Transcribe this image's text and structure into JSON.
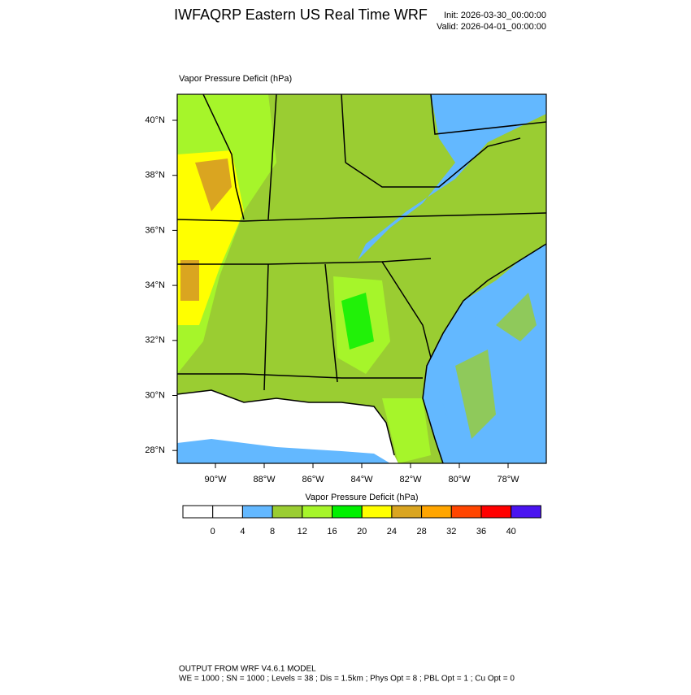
{
  "header": {
    "title": "IWFAQRP Eastern US Real Time WRF",
    "init": "Init: 2026-03-30_00:00:00",
    "valid": "Valid: 2026-04-01_00:00:00"
  },
  "map": {
    "title": "Vapor Pressure Deficit   (hPa)",
    "lat_labels": [
      "40°N",
      "38°N",
      "36°N",
      "34°N",
      "32°N",
      "30°N",
      "28°N"
    ],
    "lon_labels": [
      "90°W",
      "88°W",
      "86°W",
      "84°W",
      "82°W",
      "80°W",
      "78°W"
    ]
  },
  "colorbar": {
    "title": "Vapor Pressure Deficit  (hPa)",
    "levels": [
      0,
      4,
      8,
      12,
      16,
      20,
      24,
      28,
      32,
      36,
      40
    ],
    "colors": [
      "#ffffff",
      "#ffffff",
      "#63b8ff",
      "#9acd32",
      "#a6f52a",
      "#00f000",
      "#ffff00",
      "#daa520",
      "#ffa500",
      "#ff4500",
      "#ff0000",
      "#4a14f0"
    ]
  },
  "footer": {
    "line1": "OUTPUT FROM WRF V4.6.1 MODEL",
    "line2": "WE = 1000 ; SN = 1000 ; Levels = 38 ; Dis = 1.5km ; Phys Opt = 8 ; PBL Opt = 1 ; Cu Opt = 0"
  }
}
